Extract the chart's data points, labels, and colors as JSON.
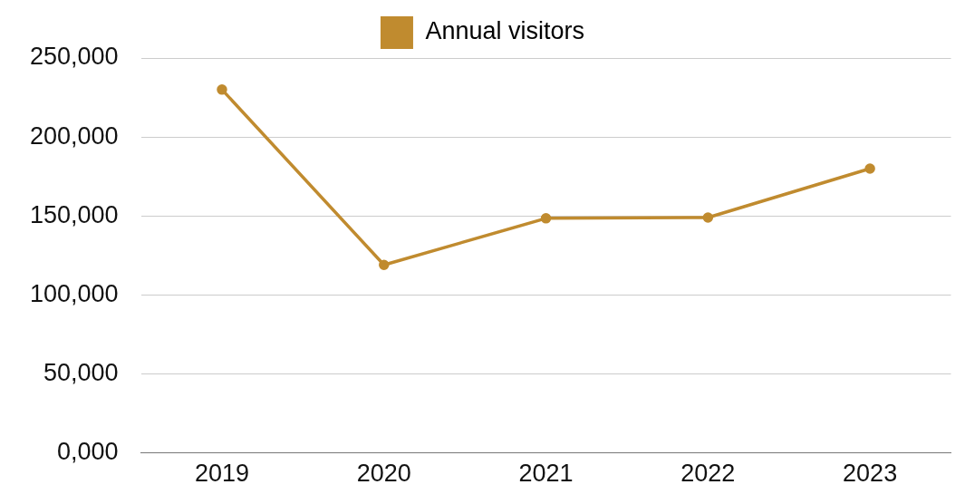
{
  "chart_data": {
    "type": "line",
    "categories": [
      "2019",
      "2020",
      "2021",
      "2022",
      "2023"
    ],
    "series": [
      {
        "name": "Annual visitors",
        "color": "#c08b2f",
        "values": [
          230000,
          119000,
          148500,
          149000,
          180000
        ]
      }
    ],
    "ylim": [
      0,
      250000
    ],
    "yticks": [
      {
        "value": 0,
        "label": "0,000"
      },
      {
        "value": 50000,
        "label": "50,000"
      },
      {
        "value": 100000,
        "label": "100,000"
      },
      {
        "value": 150000,
        "label": "150,000"
      },
      {
        "value": 200000,
        "label": "200,000"
      },
      {
        "value": 250000,
        "label": "250,000"
      }
    ],
    "grid": "y",
    "legend": "top",
    "marker": "circle",
    "line_style": "solid"
  }
}
